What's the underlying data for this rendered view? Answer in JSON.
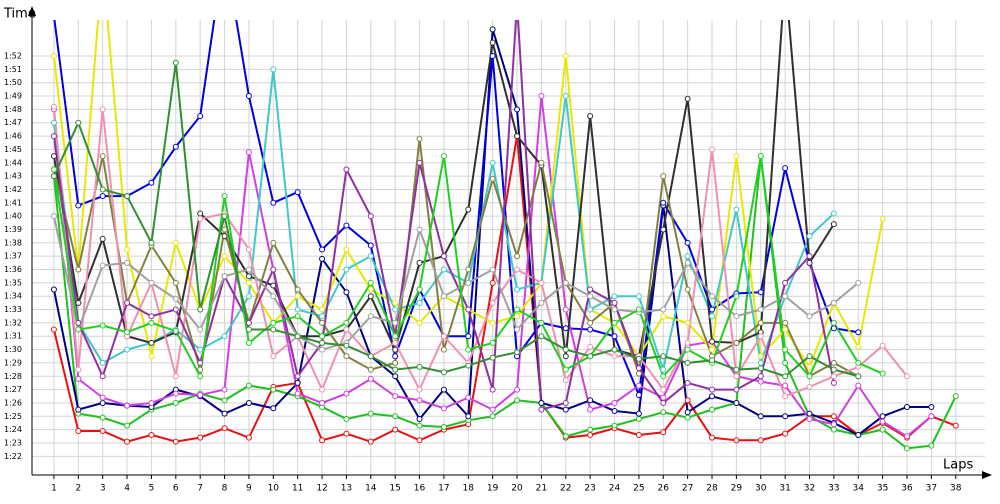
{
  "chart_data": {
    "type": "line",
    "ylabel": "Time",
    "xlabel": "Laps",
    "x": [
      1,
      2,
      3,
      4,
      5,
      6,
      7,
      8,
      9,
      10,
      11,
      12,
      13,
      14,
      15,
      16,
      17,
      18,
      19,
      20,
      21,
      22,
      23,
      24,
      25,
      26,
      27,
      28,
      29,
      30,
      31,
      32,
      33,
      34,
      35,
      36,
      37,
      38
    ],
    "xlim": [
      0.1,
      39.2
    ],
    "xticks": [
      1,
      2,
      3,
      4,
      5,
      6,
      7,
      8,
      9,
      10,
      11,
      12,
      13,
      14,
      15,
      16,
      17,
      18,
      19,
      20,
      21,
      22,
      23,
      24,
      25,
      26,
      27,
      28,
      29,
      30,
      31,
      32,
      33,
      34,
      35,
      36,
      37,
      38
    ],
    "ylim": [
      80.6,
      114.7
    ],
    "yticks": [
      {
        "value": 82,
        "label": "1:22"
      },
      {
        "value": 83,
        "label": "1:23"
      },
      {
        "value": 84,
        "label": "1:24"
      },
      {
        "value": 85,
        "label": "1:25"
      },
      {
        "value": 86,
        "label": "1:26"
      },
      {
        "value": 87,
        "label": "1:27"
      },
      {
        "value": 88,
        "label": "1:28"
      },
      {
        "value": 89,
        "label": "1:29"
      },
      {
        "value": 90,
        "label": "1:30"
      },
      {
        "value": 91,
        "label": "1:31"
      },
      {
        "value": 92,
        "label": "1:32"
      },
      {
        "value": 93,
        "label": "1:33"
      },
      {
        "value": 94,
        "label": "1:34"
      },
      {
        "value": 95,
        "label": "1:35"
      },
      {
        "value": 96,
        "label": "1:36"
      },
      {
        "value": 97,
        "label": "1:37"
      },
      {
        "value": 98,
        "label": "1:38"
      },
      {
        "value": 99,
        "label": "1:39"
      },
      {
        "value": 100,
        "label": "1:40"
      },
      {
        "value": 101,
        "label": "1:41"
      },
      {
        "value": 102,
        "label": "1:42"
      },
      {
        "value": 103,
        "label": "1:43"
      },
      {
        "value": 104,
        "label": "1:44"
      },
      {
        "value": 105,
        "label": "1:45"
      },
      {
        "value": 106,
        "label": "1:46"
      },
      {
        "value": 107,
        "label": "1:47"
      },
      {
        "value": 108,
        "label": "1:48"
      },
      {
        "value": 109,
        "label": "1:49"
      },
      {
        "value": 110,
        "label": "1:50"
      },
      {
        "value": 111,
        "label": "1:51"
      },
      {
        "value": 112,
        "label": "1:52"
      }
    ],
    "grid": true,
    "series": [
      {
        "color": "#e81010",
        "values": [
          91.5,
          83.9,
          83.9,
          83.1,
          83.6,
          83.1,
          83.4,
          84.1,
          83.4,
          87.2,
          87.5,
          83.2,
          83.7,
          83.1,
          84.0,
          83.2,
          84.0,
          84.4,
          95,
          106,
          86,
          83.4,
          83.6,
          84.1,
          83.6,
          83.8,
          86.2,
          83.4,
          83.2,
          83.2,
          83.7,
          85.0,
          85.0,
          83.6,
          84.5,
          83.4,
          85.0,
          84.3
        ]
      },
      {
        "color": "#20c020",
        "values": [
          103,
          85.2,
          84.9,
          84.3,
          85.5,
          86.0,
          86.7,
          86.2,
          87.3,
          87.0,
          86.5,
          85.7,
          84.8,
          85.2,
          85.0,
          84.3,
          84.2,
          84.7,
          85.0,
          86.2,
          86.0,
          83.5,
          84.0,
          84.3,
          84.8,
          85.3,
          84.9,
          85.5,
          86.0,
          104.5,
          89.0,
          85.0,
          84.0,
          83.6,
          84.0,
          82.6,
          82.8,
          86.5
        ]
      },
      {
        "color": "#000080",
        "values": [
          94.5,
          85.5,
          86,
          85.8,
          85.7,
          87,
          86.5,
          85.2,
          86,
          85.6,
          87.5,
          96.8,
          94.3,
          89.5,
          88,
          84.8,
          87,
          85,
          114,
          108,
          86,
          85.5,
          86.2,
          85.4,
          85.2,
          100.8,
          85.3,
          86.5,
          86.0,
          85.0,
          85.0,
          85.2,
          84.5,
          83.6,
          85.0,
          85.7,
          85.7,
          null
        ]
      },
      {
        "color": "#0000e0",
        "values": [
          115,
          100.8,
          101.5,
          101.5,
          102.5,
          105.2,
          107.5,
          120,
          109,
          101,
          101.8,
          97.5,
          99.3,
          97.8,
          89.5,
          94.5,
          91,
          91,
          112,
          89.5,
          92,
          91.6,
          91.5,
          91,
          86.6,
          101,
          98,
          93,
          94.2,
          94.3,
          103.6,
          96.5,
          91.6,
          91.3,
          null,
          null,
          null,
          null
        ]
      },
      {
        "color": "#d040e0",
        "values": [
          108,
          87.8,
          86.4,
          85.8,
          86,
          86.7,
          86.6,
          87,
          104.8,
          96,
          86.7,
          86,
          86.7,
          87.8,
          86.5,
          86.2,
          85.6,
          86.4,
          85.5,
          87,
          109,
          93,
          85.5,
          86,
          87.3,
          86.4,
          90.3,
          90.6,
          88,
          87.6,
          87.3,
          84.8,
          84.4,
          87.3,
          84.6,
          83.5,
          85.0,
          null
        ]
      },
      {
        "color": "#e8e800",
        "values": [
          112,
          96,
          119,
          97.5,
          89.5,
          98,
          93,
          97,
          95,
          92,
          94,
          93,
          97.5,
          94.5,
          93.5,
          92,
          94,
          93,
          92,
          92.5,
          95,
          112,
          93,
          92,
          89.5,
          92.5,
          92,
          90,
          104.5,
          89.5,
          91.5,
          88.7,
          93.5,
          90.2,
          99.8,
          null,
          null,
          null
        ]
      },
      {
        "color": "#40c8c8",
        "values": [
          107,
          92,
          89,
          90,
          90.5,
          91.5,
          90,
          91,
          94,
          111,
          93,
          92.5,
          96,
          97,
          93,
          93.5,
          96,
          95,
          104,
          94.5,
          95,
          109,
          93,
          94,
          94,
          88.5,
          97,
          92.5,
          100.5,
          89,
          94,
          98.5,
          100.2,
          null,
          null,
          null,
          null,
          null
        ]
      },
      {
        "color": "#303030",
        "values": [
          104.5,
          93.5,
          98.3,
          91,
          90.5,
          91.3,
          100.2,
          98.5,
          95.5,
          94.8,
          91,
          91,
          91.5,
          94,
          90,
          96.5,
          97,
          100.5,
          113,
          106,
          103.8,
          89.5,
          107.5,
          90,
          89.5,
          99,
          108.8,
          90.6,
          90.5,
          91.3,
          118,
          96.5,
          99.4,
          null,
          null,
          null,
          null,
          null
        ]
      },
      {
        "color": "#808040",
        "values": [
          103.5,
          96,
          104.5,
          93.5,
          97.8,
          95,
          88.5,
          99,
          92,
          98,
          94.5,
          92,
          89.5,
          88.5,
          89,
          105.8,
          90,
          96,
          102.8,
          97,
          104,
          95,
          92,
          93.5,
          88.2,
          103,
          94.5,
          89.5,
          90.5,
          92,
          92,
          88,
          89,
          88,
          null,
          null,
          null,
          null
        ]
      },
      {
        "color": "#f090b0",
        "values": [
          108.2,
          88.5,
          108,
          91,
          95,
          88,
          99.8,
          100.2,
          97.5,
          89.5,
          91,
          87,
          91.5,
          89.5,
          90.5,
          87,
          91,
          89,
          93.5,
          96,
          95,
          87.7,
          90.2,
          89.5,
          89.5,
          87,
          90.5,
          105,
          88,
          91,
          86.5,
          87.2,
          88,
          88.7,
          90.3,
          88,
          null,
          null
        ]
      },
      {
        "color": "#9030a0",
        "values": [
          106,
          92,
          88,
          93.5,
          92.5,
          93,
          89,
          95.5,
          92,
          96,
          88,
          90.5,
          103.5,
          100,
          91,
          104,
          97,
          93,
          87,
          116,
          85.5,
          86,
          94.5,
          93.5,
          88.6,
          86,
          87.5,
          87,
          87,
          88,
          95,
          97,
          87.5,
          null,
          null,
          null,
          null,
          null
        ]
      },
      {
        "color": "#a0a0a0",
        "values": [
          100,
          91.5,
          96.3,
          96.5,
          95,
          93.8,
          91.5,
          95.5,
          96,
          94,
          91,
          90,
          90.5,
          92.5,
          92,
          99,
          94,
          95,
          96,
          91.5,
          93.5,
          95,
          94,
          93,
          92.8,
          93,
          96.5,
          94,
          92.5,
          93,
          94,
          92.5,
          93.5,
          95,
          null,
          null,
          null,
          null
        ]
      },
      {
        "color": "#20d020",
        "values": [
          103.5,
          91.5,
          91.8,
          91.3,
          92,
          91.4,
          88,
          101.5,
          90.5,
          92,
          92.5,
          91,
          92,
          95,
          91,
          94.5,
          104.5,
          90,
          90.5,
          93,
          92,
          88.5,
          89.5,
          92,
          93,
          88,
          90,
          89,
          94,
          104.5,
          90,
          88,
          92,
          89,
          88.2,
          null,
          null,
          null
        ]
      },
      {
        "color": "#309030",
        "values": [
          103,
          107,
          102,
          101.5,
          98,
          111.5,
          93,
          100,
          91.5,
          91.5,
          91,
          90.5,
          90.3,
          89.5,
          88.5,
          88.7,
          88.3,
          88.8,
          89.4,
          89.8,
          91,
          90,
          89.5,
          90,
          89.3,
          89.5,
          89,
          89.2,
          88.5,
          88.6,
          88,
          89.5,
          88.5,
          88,
          null,
          null,
          null,
          null
        ]
      }
    ]
  }
}
